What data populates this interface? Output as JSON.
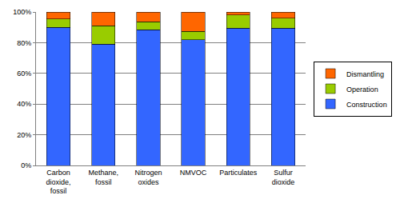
{
  "chart_data": {
    "type": "bar",
    "stacked": true,
    "categories": [
      "Carbon dioxide, fossil",
      "Methane, fossil",
      "Nitrogen oxides",
      "NMVOC",
      "Particulates",
      "Sulfur dioxide"
    ],
    "series": [
      {
        "name": "Construction",
        "color": "#3366ff",
        "values": [
          90,
          79,
          88.5,
          82,
          89.5,
          89.5
        ]
      },
      {
        "name": "Operation",
        "color": "#99cc00",
        "values": [
          5.5,
          12,
          5,
          5.5,
          8.5,
          6.5
        ]
      },
      {
        "name": "Dismantling",
        "color": "#ff6600",
        "values": [
          4.5,
          9,
          6.5,
          12.5,
          2,
          4
        ]
      }
    ],
    "ylim": [
      0,
      100
    ],
    "yticks": [
      {
        "value": 0,
        "label": "0%"
      },
      {
        "value": 20,
        "label": "20%"
      },
      {
        "value": 40,
        "label": "40%"
      },
      {
        "value": 60,
        "label": "60%"
      },
      {
        "value": 80,
        "label": "80%"
      },
      {
        "value": 100,
        "label": "100%"
      }
    ],
    "grid": true,
    "legend": "right"
  }
}
